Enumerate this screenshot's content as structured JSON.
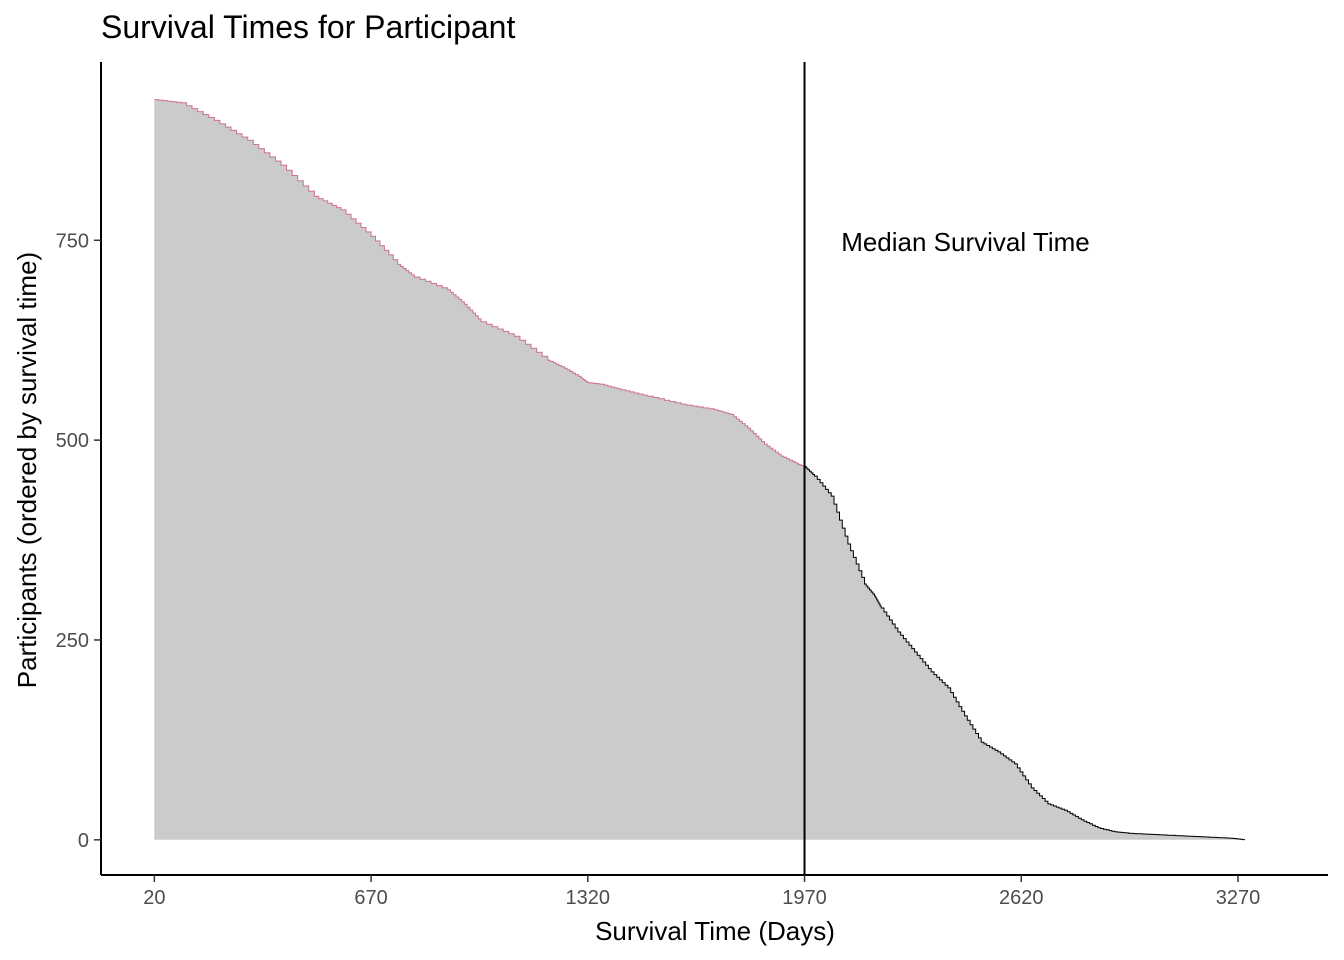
{
  "chart_data": {
    "type": "area",
    "title": "Survival Times for Participant",
    "xlabel": "Survival Time (Days)",
    "ylabel": "Participants (ordered by survival time)",
    "x_ticks": [
      20,
      670,
      1320,
      1970,
      2620,
      3270
    ],
    "y_ticks": [
      0,
      250,
      500,
      750
    ],
    "xlim": [
      -140,
      3540
    ],
    "ylim": [
      -44,
      973
    ],
    "grid": false,
    "legend": "none",
    "series": [
      {
        "x": [
          20,
          100,
          200,
          300,
          400,
          500,
          580,
          670,
          750,
          800,
          900,
          950,
          1000,
          1100,
          1200,
          1250,
          1300,
          1320,
          1360,
          1420,
          1500,
          1600,
          1700,
          1750,
          1800,
          1850,
          1900,
          1950,
          1970,
          2000,
          2050,
          2100,
          2150,
          2180,
          2200,
          2250,
          2300,
          2350,
          2400,
          2450,
          2500,
          2550,
          2600,
          2650,
          2700,
          2750,
          2800,
          2850,
          2900,
          2950,
          3000,
          3050,
          3100,
          3150,
          3200,
          3250,
          3290
        ],
        "values": [
          926,
          922,
          900,
          875,
          844,
          805,
          788,
          755,
          720,
          704,
          688,
          670,
          648,
          630,
          600,
          590,
          578,
          572,
          570,
          563,
          555,
          545,
          538,
          532,
          515,
          495,
          480,
          470,
          467,
          455,
          430,
          370,
          320,
          305,
          290,
          260,
          235,
          210,
          190,
          155,
          122,
          110,
          95,
          65,
          45,
          37,
          25,
          15,
          10,
          8,
          7,
          6,
          5,
          4,
          3,
          2,
          0
        ]
      }
    ],
    "fill_color": "#cbcbcb",
    "line_color": "#000000",
    "edge_color_early": "#c0145a",
    "median_line": {
      "x": 1970,
      "label": "Median Survival Time",
      "label_x": 2080,
      "label_y": 748
    }
  }
}
